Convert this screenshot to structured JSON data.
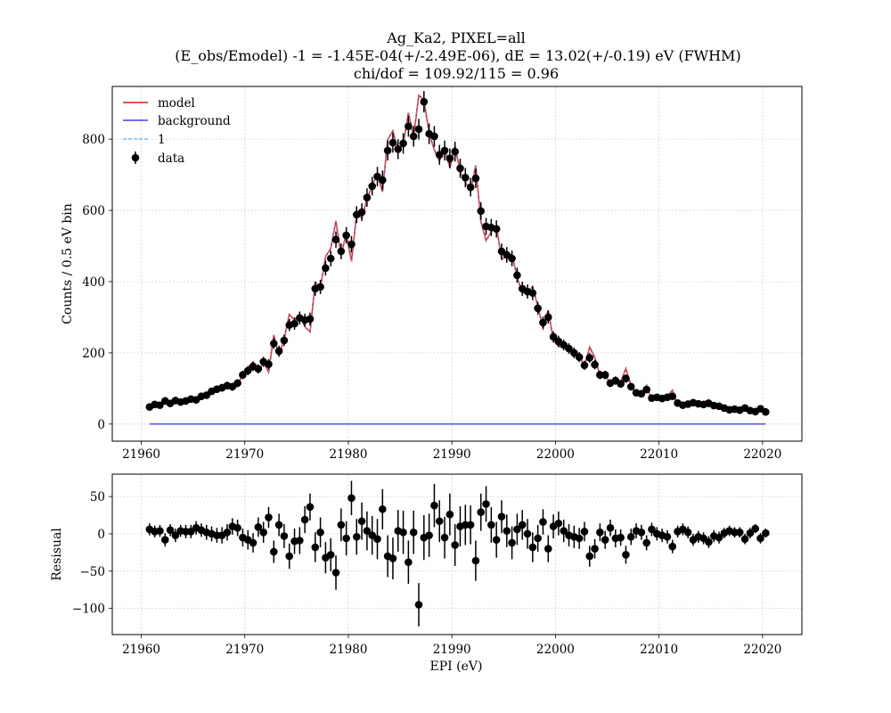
{
  "chart_data": {
    "type": "scatter",
    "title_lines": [
      "Ag_Ka2, PIXEL=all",
      "(E_obs/Emodel) -1 = -1.45E-04(+/-2.49E-06), dE = 13.02(+/-0.19) eV (FWHM)",
      "chi/dof = 109.92/115 = 0.96"
    ],
    "xlabel": "EPI (eV)",
    "xlim": [
      21957.2,
      22023.8
    ],
    "xticks": [
      "21960",
      "21970",
      "21980",
      "21990",
      "22000",
      "22010",
      "22020"
    ],
    "grid": true,
    "colors": {
      "model": "#e41a1c",
      "background": "#1f1fe8",
      "one": "#6aa8e8",
      "data": "#000000"
    },
    "top": {
      "ylabel": "Counts / 0.5 eV bin",
      "ylim": [
        -48,
        948
      ],
      "yticks": [
        "0",
        "200",
        "400",
        "600",
        "800"
      ],
      "legend_position": "upper-left",
      "legend": [
        "model",
        "background",
        "1",
        "data"
      ],
      "background_level": 0,
      "x": [
        21960.8,
        21961.3,
        21961.8,
        21962.3,
        21962.8,
        21963.3,
        21963.8,
        21964.3,
        21964.8,
        21965.3,
        21965.8,
        21966.3,
        21966.8,
        21967.3,
        21967.8,
        21968.3,
        21968.8,
        21969.3,
        21969.8,
        21970.3,
        21970.8,
        21971.3,
        21971.8,
        21972.3,
        21972.8,
        21973.3,
        21973.8,
        21974.3,
        21974.8,
        21975.3,
        21975.8,
        21976.3,
        21976.8,
        21977.3,
        21977.8,
        21978.3,
        21978.8,
        21979.3,
        21979.8,
        21980.3,
        21980.8,
        21981.3,
        21981.8,
        21982.3,
        21982.8,
        21983.3,
        21983.8,
        21984.3,
        21984.8,
        21985.3,
        21985.8,
        21986.3,
        21986.8,
        21987.3,
        21987.8,
        21988.3,
        21988.8,
        21989.3,
        21989.8,
        21990.3,
        21990.8,
        21991.3,
        21991.8,
        21992.3,
        21992.8,
        21993.3,
        21993.8,
        21994.3,
        21994.8,
        21995.3,
        21995.8,
        21996.3,
        21996.8,
        21997.3,
        21997.8,
        21998.3,
        21998.8,
        21999.3,
        21999.8,
        22000.3,
        22000.8,
        22001.3,
        22001.8,
        22002.3,
        22002.8,
        22003.3,
        22003.8,
        22004.3,
        22004.8,
        22005.3,
        22005.8,
        22006.3,
        22006.8,
        22007.3,
        22007.8,
        22008.3,
        22008.8,
        22009.3,
        22009.8,
        22010.3,
        22010.8,
        22011.3,
        22011.8,
        22012.3,
        22012.8,
        22013.3,
        22013.8,
        22014.3,
        22014.8,
        22015.3,
        22015.8,
        22016.3,
        22016.8,
        22017.3,
        22017.8,
        22018.3,
        22018.8,
        22019.3,
        22019.8,
        22020.3
      ],
      "y": [
        48,
        55,
        53,
        65,
        58,
        66,
        62,
        65,
        70,
        68,
        78,
        81,
        92,
        98,
        102,
        108,
        105,
        115,
        138,
        150,
        162,
        155,
        175,
        168,
        226,
        205,
        235,
        278,
        282,
        298,
        292,
        295,
        380,
        385,
        438,
        465,
        518,
        485,
        530,
        505,
        588,
        595,
        636,
        668,
        695,
        685,
        768,
        790,
        772,
        788,
        836,
        808,
        828,
        905,
        815,
        808,
        756,
        768,
        746,
        765,
        718,
        692,
        665,
        690,
        598,
        555,
        552,
        548,
        485,
        475,
        465,
        418,
        380,
        372,
        368,
        325,
        285,
        300,
        245,
        232,
        222,
        212,
        200,
        188,
        165,
        186,
        167,
        138,
        138,
        115,
        122,
        113,
        128,
        105,
        88,
        85,
        97,
        73,
        75,
        72,
        75,
        78,
        59,
        53,
        56,
        60,
        57,
        55,
        58,
        52,
        50,
        45,
        40,
        42,
        39,
        45,
        38,
        35,
        43,
        34
      ],
      "err": [
        8,
        8,
        8,
        9,
        8,
        9,
        8,
        9,
        9,
        9,
        9,
        10,
        10,
        10,
        11,
        11,
        11,
        11,
        12,
        13,
        13,
        13,
        14,
        14,
        15,
        15,
        16,
        17,
        17,
        18,
        18,
        18,
        20,
        20,
        21,
        22,
        23,
        22,
        23,
        23,
        24,
        25,
        26,
        26,
        27,
        27,
        28,
        28,
        28,
        29,
        29,
        29,
        29,
        30,
        29,
        29,
        28,
        28,
        28,
        28,
        27,
        27,
        26,
        27,
        25,
        24,
        24,
        24,
        22,
        22,
        22,
        21,
        20,
        20,
        20,
        18,
        17,
        18,
        16,
        16,
        15,
        15,
        15,
        14,
        13,
        14,
        13,
        12,
        12,
        11,
        12,
        11,
        12,
        11,
        10,
        10,
        10,
        9,
        9,
        9,
        9,
        9,
        8,
        8,
        8,
        8,
        8,
        8,
        8,
        8,
        8,
        7,
        7,
        7,
        7,
        7,
        7,
        6,
        7,
        6
      ]
    },
    "bottom": {
      "ylabel": "Resisual",
      "ylim": [
        -135,
        80
      ],
      "yticks": [
        "50",
        "0",
        "−50",
        "−100"
      ],
      "ytick_values": [
        50,
        0,
        -50,
        -100
      ],
      "x": [
        21960.8,
        21961.3,
        21961.8,
        21962.3,
        21962.8,
        21963.3,
        21963.8,
        21964.3,
        21964.8,
        21965.3,
        21965.8,
        21966.3,
        21966.8,
        21967.3,
        21967.8,
        21968.3,
        21968.8,
        21969.3,
        21969.8,
        21970.3,
        21970.8,
        21971.3,
        21971.8,
        21972.3,
        21972.8,
        21973.3,
        21973.8,
        21974.3,
        21974.8,
        21975.3,
        21975.8,
        21976.3,
        21976.8,
        21977.3,
        21977.8,
        21978.3,
        21978.8,
        21979.3,
        21979.8,
        21980.3,
        21980.8,
        21981.3,
        21981.8,
        21982.3,
        21982.8,
        21983.3,
        21983.8,
        21984.3,
        21984.8,
        21985.3,
        21985.8,
        21986.3,
        21986.8,
        21987.3,
        21987.8,
        21988.3,
        21988.8,
        21989.3,
        21989.8,
        21990.3,
        21990.8,
        21991.3,
        21991.8,
        21992.3,
        21992.8,
        21993.3,
        21993.8,
        21994.3,
        21994.8,
        21995.3,
        21995.8,
        21996.3,
        21996.8,
        21997.3,
        21997.8,
        21998.3,
        21998.8,
        21999.3,
        21999.8,
        22000.3,
        22000.8,
        22001.3,
        22001.8,
        22002.3,
        22002.8,
        22003.3,
        22003.8,
        22004.3,
        22004.8,
        22005.3,
        22005.8,
        22006.3,
        22006.8,
        22007.3,
        22007.8,
        22008.3,
        22008.8,
        22009.3,
        22009.8,
        22010.3,
        22010.8,
        22011.3,
        22011.8,
        22012.3,
        22012.8,
        22013.3,
        22013.8,
        22014.3,
        22014.8,
        22015.3,
        22015.8,
        22016.3,
        22016.8,
        22017.3,
        22017.8,
        22018.3,
        22018.8,
        22019.3,
        22019.8,
        22020.3
      ],
      "y": [
        6,
        3,
        4,
        -8,
        5,
        -2,
        4,
        3,
        3,
        8,
        5,
        2,
        0,
        -2,
        -2,
        2,
        10,
        8,
        -5,
        -8,
        -12,
        9,
        2,
        22,
        -24,
        12,
        -3,
        -30,
        -10,
        -9,
        19,
        36,
        -18,
        2,
        -32,
        -28,
        -52,
        12,
        -6,
        48,
        -4,
        17,
        4,
        -2,
        -7,
        33,
        -30,
        -33,
        4,
        2,
        -38,
        2,
        -95,
        -5,
        -2,
        38,
        17,
        -5,
        26,
        -15,
        10,
        12,
        12,
        -36,
        29,
        40,
        12,
        -8,
        23,
        4,
        -12,
        6,
        12,
        0,
        -18,
        -6,
        16,
        -20,
        10,
        14,
        4,
        -2,
        -4,
        -6,
        3,
        -30,
        -20,
        2,
        -8,
        8,
        -6,
        -5,
        -28,
        -4,
        4,
        2,
        -12,
        6,
        0,
        -2,
        -4,
        -17,
        3,
        6,
        2,
        -8,
        -4,
        -6,
        -11,
        -3,
        -5,
        1,
        4,
        2,
        2,
        -7,
        1,
        7,
        -6,
        1
      ],
      "err": [
        8,
        8,
        8,
        9,
        8,
        9,
        8,
        9,
        9,
        9,
        9,
        10,
        10,
        10,
        11,
        11,
        11,
        11,
        12,
        13,
        13,
        13,
        14,
        14,
        15,
        15,
        16,
        17,
        17,
        18,
        18,
        18,
        20,
        20,
        21,
        22,
        23,
        22,
        23,
        23,
        24,
        25,
        26,
        26,
        27,
        27,
        28,
        28,
        28,
        29,
        29,
        29,
        29,
        30,
        29,
        29,
        28,
        28,
        28,
        28,
        27,
        27,
        26,
        27,
        25,
        24,
        24,
        24,
        22,
        22,
        22,
        21,
        20,
        20,
        20,
        18,
        17,
        18,
        16,
        16,
        15,
        15,
        15,
        14,
        13,
        14,
        13,
        12,
        12,
        11,
        12,
        11,
        12,
        11,
        10,
        10,
        10,
        9,
        9,
        9,
        9,
        9,
        8,
        8,
        8,
        8,
        8,
        8,
        8,
        8,
        8,
        7,
        7,
        7,
        7,
        7,
        7,
        6,
        7,
        6
      ]
    }
  }
}
